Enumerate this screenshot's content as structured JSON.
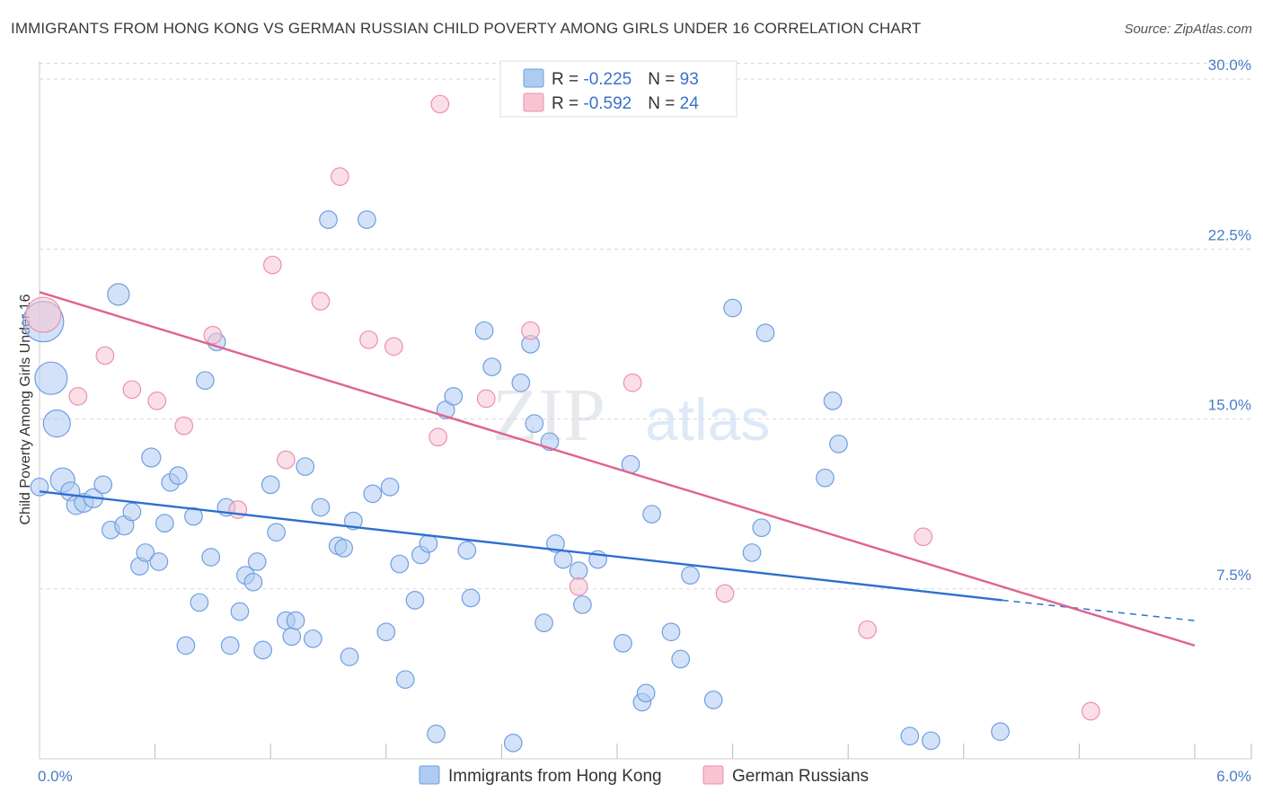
{
  "title": "IMMIGRANTS FROM HONG KONG VS GERMAN RUSSIAN CHILD POVERTY AMONG GIRLS UNDER 16 CORRELATION CHART",
  "source": "Source: ZipAtlas.com",
  "watermark": {
    "zip": "ZIP",
    "atlas": "atlas"
  },
  "colors": {
    "blue_fill": "#aecbf2",
    "blue_stroke": "#6f9fe0",
    "blue_line": "#2c6fd1",
    "pink_fill": "#f8c4d3",
    "pink_stroke": "#ec8fae",
    "pink_line": "#e0628f",
    "grid": "#d8d8d8",
    "tick_text": "#4a7cc7"
  },
  "legend": {
    "rows": [
      {
        "r_label": "R = ",
        "r_value": "-0.225",
        "n_label": "N = ",
        "n_value": "93"
      },
      {
        "r_label": "R = ",
        "r_value": "-0.592",
        "n_label": "N = ",
        "n_value": "24"
      }
    ]
  },
  "chart_data": {
    "type": "scatter",
    "xlabel": "",
    "ylabel": "Child Poverty Among Girls Under 16",
    "xlim": [
      0,
      6.0
    ],
    "ylim": [
      0,
      30.8
    ],
    "x_tick_labels": [
      "0.0%",
      "6.0%"
    ],
    "y_ticks": [
      7.5,
      15.0,
      22.5,
      30.0
    ],
    "y_tick_labels": [
      "7.5%",
      "15.0%",
      "22.5%",
      "30.0%"
    ],
    "grid": true,
    "series": [
      {
        "name": "Immigrants from Hong Kong",
        "color": "blue",
        "r": -0.225,
        "n": 93,
        "trend": {
          "x0": 0.0,
          "y0": 11.8,
          "x1": 5.0,
          "y1": 7.0,
          "dash_to_x": 6.0,
          "dash_to_y": 6.1
        },
        "points": [
          [
            0.02,
            19.3,
            3
          ],
          [
            0.06,
            16.8,
            2.4
          ],
          [
            0.09,
            14.8,
            2
          ],
          [
            0.12,
            12.3,
            1.8
          ],
          [
            0.16,
            11.8,
            1.4
          ],
          [
            0.19,
            11.2,
            1.4
          ],
          [
            0.23,
            11.3,
            1.4
          ],
          [
            0.28,
            11.5,
            1.4
          ],
          [
            0.33,
            12.1,
            1.3
          ],
          [
            0.37,
            10.1,
            1.3
          ],
          [
            0.41,
            20.5,
            1.6
          ],
          [
            0.44,
            10.3,
            1.4
          ],
          [
            0.48,
            10.9,
            1.3
          ],
          [
            0.52,
            8.5,
            1.3
          ],
          [
            0.55,
            9.1,
            1.3
          ],
          [
            0.58,
            13.3,
            1.4
          ],
          [
            0.62,
            8.7,
            1.3
          ],
          [
            0.65,
            10.4,
            1.3
          ],
          [
            0.68,
            12.2,
            1.3
          ],
          [
            0.72,
            12.5,
            1.3
          ],
          [
            0.76,
            5.0,
            1.3
          ],
          [
            0.8,
            10.7,
            1.3
          ],
          [
            0.83,
            6.9,
            1.3
          ],
          [
            0.86,
            16.7,
            1.3
          ],
          [
            0.89,
            8.9,
            1.3
          ],
          [
            0.92,
            18.4,
            1.3
          ],
          [
            0.97,
            11.1,
            1.3
          ],
          [
            0.99,
            5.0,
            1.3
          ],
          [
            1.04,
            6.5,
            1.3
          ],
          [
            1.07,
            8.1,
            1.3
          ],
          [
            1.11,
            7.8,
            1.3
          ],
          [
            1.13,
            8.7,
            1.3
          ],
          [
            1.16,
            4.8,
            1.3
          ],
          [
            1.2,
            12.1,
            1.3
          ],
          [
            1.23,
            10.0,
            1.3
          ],
          [
            1.28,
            6.1,
            1.3
          ],
          [
            1.31,
            5.4,
            1.3
          ],
          [
            1.33,
            6.1,
            1.3
          ],
          [
            1.38,
            12.9,
            1.3
          ],
          [
            1.42,
            5.3,
            1.3
          ],
          [
            1.46,
            11.1,
            1.3
          ],
          [
            1.5,
            23.8,
            1.3
          ],
          [
            1.55,
            9.4,
            1.3
          ],
          [
            1.58,
            9.3,
            1.3
          ],
          [
            1.61,
            4.5,
            1.3
          ],
          [
            1.63,
            10.5,
            1.3
          ],
          [
            1.7,
            23.8,
            1.3
          ],
          [
            1.73,
            11.7,
            1.3
          ],
          [
            1.8,
            5.6,
            1.3
          ],
          [
            1.82,
            12.0,
            1.3
          ],
          [
            1.87,
            8.6,
            1.3
          ],
          [
            1.9,
            3.5,
            1.3
          ],
          [
            1.95,
            7.0,
            1.3
          ],
          [
            1.98,
            9.0,
            1.3
          ],
          [
            2.02,
            9.5,
            1.3
          ],
          [
            2.06,
            1.1,
            1.3
          ],
          [
            2.11,
            15.4,
            1.3
          ],
          [
            2.15,
            16.0,
            1.3
          ],
          [
            2.22,
            9.2,
            1.3
          ],
          [
            2.24,
            7.1,
            1.3
          ],
          [
            2.31,
            18.9,
            1.3
          ],
          [
            2.35,
            17.3,
            1.3
          ],
          [
            2.46,
            0.7,
            1.3
          ],
          [
            2.5,
            16.6,
            1.3
          ],
          [
            2.55,
            18.3,
            1.3
          ],
          [
            2.57,
            14.8,
            1.3
          ],
          [
            2.62,
            6.0,
            1.3
          ],
          [
            2.65,
            14.0,
            1.3
          ],
          [
            2.68,
            9.5,
            1.3
          ],
          [
            2.72,
            8.8,
            1.3
          ],
          [
            2.8,
            8.3,
            1.3
          ],
          [
            2.82,
            6.8,
            1.3
          ],
          [
            2.9,
            8.8,
            1.3
          ],
          [
            3.03,
            5.1,
            1.3
          ],
          [
            3.07,
            13.0,
            1.3
          ],
          [
            3.13,
            2.5,
            1.3
          ],
          [
            3.15,
            2.9,
            1.3
          ],
          [
            3.18,
            10.8,
            1.3
          ],
          [
            3.28,
            5.6,
            1.3
          ],
          [
            3.33,
            4.4,
            1.3
          ],
          [
            3.38,
            8.1,
            1.3
          ],
          [
            3.5,
            2.6,
            1.3
          ],
          [
            3.6,
            19.9,
            1.3
          ],
          [
            3.7,
            9.1,
            1.3
          ],
          [
            3.75,
            10.2,
            1.3
          ],
          [
            3.77,
            18.8,
            1.3
          ],
          [
            4.08,
            12.4,
            1.3
          ],
          [
            4.12,
            15.8,
            1.3
          ],
          [
            4.15,
            13.9,
            1.3
          ],
          [
            4.52,
            1.0,
            1.3
          ],
          [
            4.63,
            0.8,
            1.3
          ],
          [
            4.99,
            1.2,
            1.3
          ],
          [
            0.0,
            12.0,
            1.3
          ]
        ]
      },
      {
        "name": "German Russians",
        "color": "pink",
        "r": -0.592,
        "n": 24,
        "trend": {
          "x0": 0.0,
          "y0": 20.6,
          "x1": 6.0,
          "y1": 5.0
        },
        "points": [
          [
            0.02,
            19.6,
            2.6
          ],
          [
            0.2,
            16.0,
            1.3
          ],
          [
            0.34,
            17.8,
            1.3
          ],
          [
            0.48,
            16.3,
            1.3
          ],
          [
            0.61,
            15.8,
            1.3
          ],
          [
            0.75,
            14.7,
            1.3
          ],
          [
            0.9,
            18.7,
            1.3
          ],
          [
            1.03,
            11.0,
            1.3
          ],
          [
            1.21,
            21.8,
            1.3
          ],
          [
            1.28,
            13.2,
            1.3
          ],
          [
            1.46,
            20.2,
            1.3
          ],
          [
            1.56,
            25.7,
            1.3
          ],
          [
            1.71,
            18.5,
            1.3
          ],
          [
            1.84,
            18.2,
            1.3
          ],
          [
            2.07,
            14.2,
            1.3
          ],
          [
            2.08,
            28.9,
            1.3
          ],
          [
            2.32,
            15.9,
            1.3
          ],
          [
            2.55,
            18.9,
            1.3
          ],
          [
            2.8,
            7.6,
            1.3
          ],
          [
            3.08,
            16.6,
            1.3
          ],
          [
            3.56,
            7.3,
            1.3
          ],
          [
            4.3,
            5.7,
            1.3
          ],
          [
            4.59,
            9.8,
            1.3
          ],
          [
            5.46,
            2.1,
            1.3
          ]
        ]
      }
    ]
  }
}
